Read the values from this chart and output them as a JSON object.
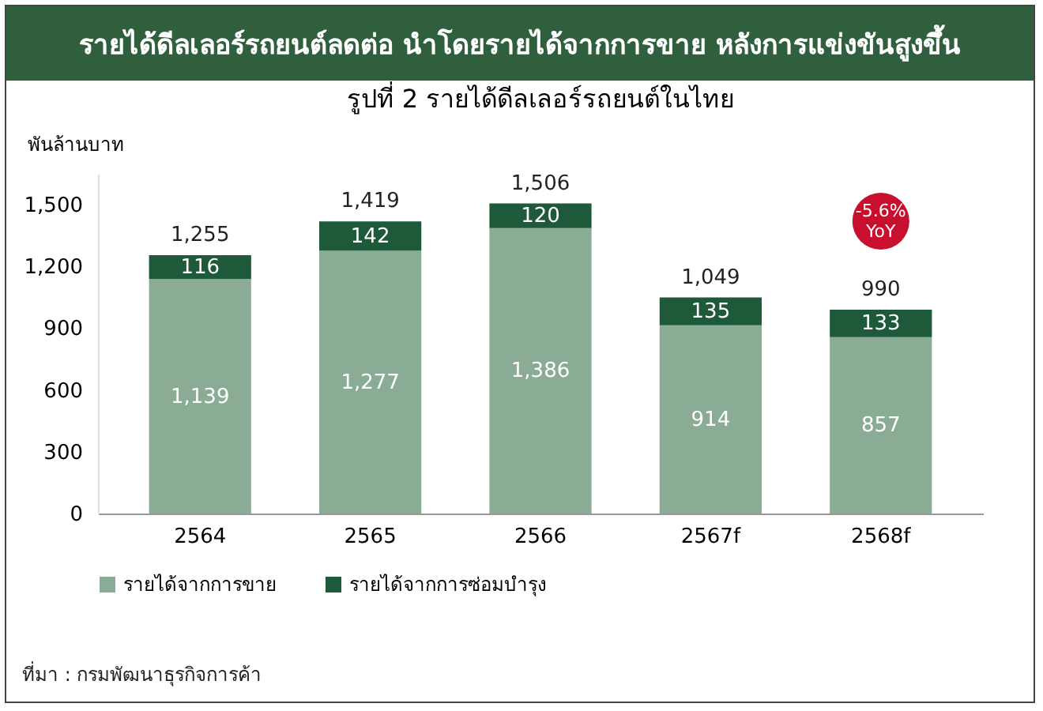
{
  "chart_data": {
    "type": "bar",
    "stacked": true,
    "title": "รายได้ดีลเลอร์รถยนต์ลดต่อ นำโดยรายได้จากการขาย หลังการแข่งขันสูงขึ้น",
    "subtitle": "รูปที่ 2 รายได้ดีลเลอร์รถยนต์ในไทย",
    "ylabel": "พันล้านบาท",
    "categories": [
      "2564",
      "2565",
      "2566",
      "2567f",
      "2568f"
    ],
    "series": [
      {
        "name": "รายได้จากการขาย",
        "color": "#8aab94",
        "values": [
          1139,
          1277,
          1386,
          914,
          857
        ],
        "value_labels": [
          "1,139",
          "1,277",
          "1,386",
          "914",
          "857"
        ]
      },
      {
        "name": "รายได้จากการซ่อมบำรุง",
        "color": "#1e5a3a",
        "values": [
          116,
          142,
          120,
          135,
          133
        ],
        "value_labels": [
          "116",
          "142",
          "120",
          "135",
          "133"
        ]
      }
    ],
    "totals": [
      "1,255",
      "1,419",
      "1,506",
      "1,049",
      "990"
    ],
    "ylim": [
      0,
      1650
    ],
    "yticks": [
      0,
      {
        "value": 300,
        "label": "300"
      },
      {
        "value": 600,
        "label": "600"
      },
      {
        "value": 900,
        "label": "900"
      },
      {
        "value": 1200,
        "label": "1,200"
      },
      {
        "value": 1500,
        "label": "1,500"
      }
    ],
    "grid": false,
    "legend": "bottom",
    "annotations": [
      {
        "text": "-5.6% YoY",
        "x": "2568f",
        "y": 1420
      },
      "ที่มา : กรมพัฒนาธุรกิจการค้า"
    ]
  }
}
